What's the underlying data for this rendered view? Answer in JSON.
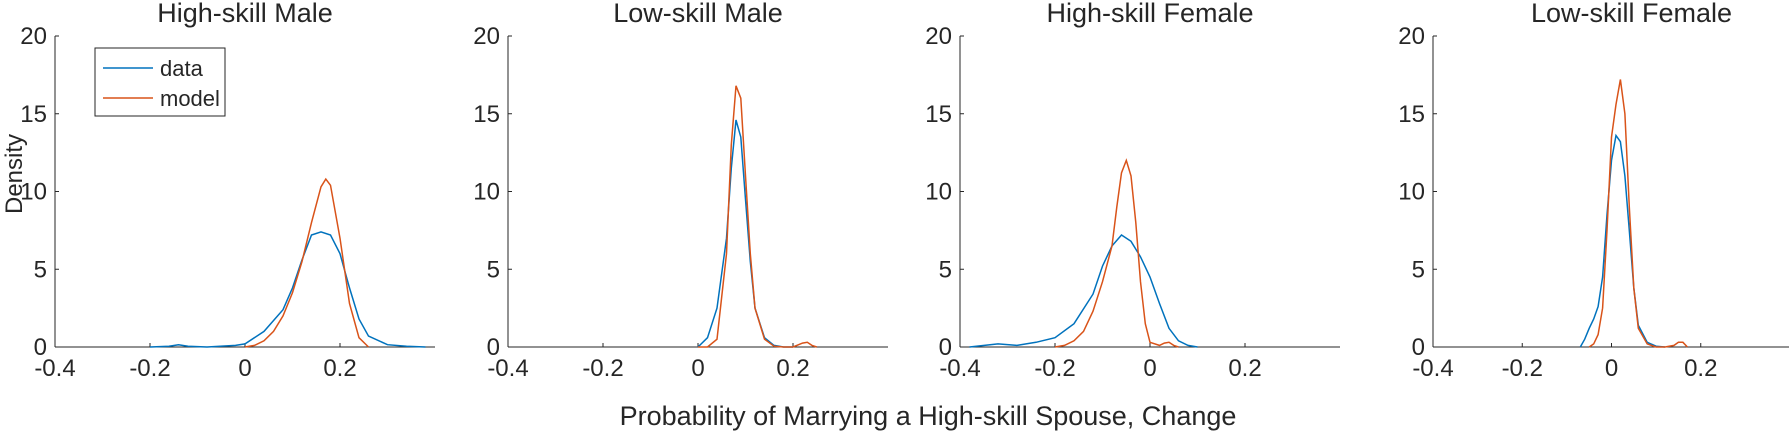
{
  "chart_data": [
    {
      "type": "line",
      "title": "High-skill Male",
      "xlim": [
        -0.4,
        0.4
      ],
      "ylim": [
        0,
        20
      ],
      "xticks": [
        "-0.4",
        "-0.2",
        "0",
        "0.2"
      ],
      "xtick_values": [
        -0.4,
        -0.2,
        0,
        0.2
      ],
      "yticks": [
        "0",
        "5",
        "10",
        "15",
        "20"
      ],
      "ytick_values": [
        0,
        5,
        10,
        15,
        20
      ],
      "series": [
        {
          "name": "data",
          "color": "#0072BD",
          "x": [
            -0.2,
            -0.16,
            -0.14,
            -0.12,
            -0.08,
            -0.02,
            0.0,
            0.04,
            0.08,
            0.1,
            0.12,
            0.14,
            0.16,
            0.18,
            0.2,
            0.22,
            0.24,
            0.26,
            0.3,
            0.34,
            0.38
          ],
          "y": [
            0.0,
            0.05,
            0.15,
            0.05,
            0.0,
            0.1,
            0.2,
            1.0,
            2.4,
            3.8,
            5.6,
            7.2,
            7.4,
            7.2,
            6.0,
            3.8,
            1.8,
            0.7,
            0.15,
            0.05,
            0.0
          ]
        },
        {
          "name": "model",
          "color": "#D95319",
          "x": [
            0.0,
            0.02,
            0.04,
            0.06,
            0.08,
            0.1,
            0.12,
            0.14,
            0.16,
            0.17,
            0.18,
            0.2,
            0.22,
            0.24,
            0.26
          ],
          "y": [
            0.0,
            0.1,
            0.4,
            1.0,
            2.0,
            3.5,
            5.5,
            8.0,
            10.3,
            10.8,
            10.4,
            7.0,
            2.8,
            0.6,
            0.0
          ]
        }
      ],
      "legend": {
        "entries": [
          "data",
          "model"
        ],
        "placement": "top-left"
      }
    },
    {
      "type": "line",
      "title": "Low-skill Male",
      "xlim": [
        -0.4,
        0.4
      ],
      "ylim": [
        0,
        20
      ],
      "xticks": [
        "-0.4",
        "-0.2",
        "0",
        "0.2"
      ],
      "xtick_values": [
        -0.4,
        -0.2,
        0,
        0.2
      ],
      "yticks": [
        "0",
        "5",
        "10",
        "15",
        "20"
      ],
      "ytick_values": [
        0,
        5,
        10,
        15,
        20
      ],
      "series": [
        {
          "name": "data",
          "color": "#0072BD",
          "x": [
            0.0,
            0.02,
            0.04,
            0.06,
            0.07,
            0.08,
            0.09,
            0.1,
            0.11,
            0.12,
            0.14,
            0.16,
            0.18,
            0.2
          ],
          "y": [
            0.0,
            0.6,
            2.5,
            7.0,
            11.5,
            14.6,
            13.5,
            9.5,
            5.5,
            2.5,
            0.6,
            0.1,
            0.0,
            0.0
          ]
        },
        {
          "name": "model",
          "color": "#D95319",
          "x": [
            0.0,
            0.02,
            0.04,
            0.06,
            0.07,
            0.08,
            0.09,
            0.1,
            0.11,
            0.12,
            0.14,
            0.16,
            0.18,
            0.2,
            0.22,
            0.23,
            0.24,
            0.25
          ],
          "y": [
            0.0,
            0.0,
            0.5,
            6.0,
            13.0,
            16.8,
            16.0,
            11.0,
            6.0,
            2.5,
            0.5,
            0.05,
            0.0,
            0.0,
            0.25,
            0.3,
            0.1,
            0.0
          ]
        }
      ]
    },
    {
      "type": "line",
      "title": "High-skill Female",
      "xlim": [
        -0.4,
        0.4
      ],
      "ylim": [
        0,
        20
      ],
      "xticks": [
        "-0.4",
        "-0.2",
        "0",
        "0.2"
      ],
      "xtick_values": [
        -0.4,
        -0.2,
        0,
        0.2
      ],
      "yticks": [
        "0",
        "5",
        "10",
        "15",
        "20"
      ],
      "ytick_values": [
        0,
        5,
        10,
        15,
        20
      ],
      "series": [
        {
          "name": "data",
          "color": "#0072BD",
          "x": [
            -0.38,
            -0.32,
            -0.28,
            -0.24,
            -0.2,
            -0.16,
            -0.12,
            -0.1,
            -0.08,
            -0.06,
            -0.04,
            -0.02,
            0.0,
            0.02,
            0.04,
            0.06,
            0.08,
            0.1
          ],
          "y": [
            0.0,
            0.2,
            0.1,
            0.3,
            0.6,
            1.5,
            3.4,
            5.2,
            6.5,
            7.2,
            6.8,
            5.8,
            4.5,
            2.8,
            1.2,
            0.4,
            0.1,
            0.0
          ]
        },
        {
          "name": "model",
          "color": "#D95319",
          "x": [
            -0.2,
            -0.18,
            -0.16,
            -0.14,
            -0.12,
            -0.1,
            -0.08,
            -0.07,
            -0.06,
            -0.05,
            -0.04,
            -0.03,
            -0.02,
            -0.01,
            0.0,
            0.02,
            0.03,
            0.04,
            0.05,
            0.06
          ],
          "y": [
            0.0,
            0.1,
            0.4,
            1.0,
            2.3,
            4.2,
            6.5,
            9.0,
            11.2,
            12.0,
            11.0,
            8.0,
            4.2,
            1.5,
            0.3,
            0.1,
            0.25,
            0.3,
            0.1,
            0.0
          ]
        }
      ]
    },
    {
      "type": "line",
      "title": "Low-skill Female",
      "xlim": [
        -0.4,
        0.4
      ],
      "ylim": [
        0,
        20
      ],
      "xticks": [
        "-0.4",
        "-0.2",
        "0",
        "0.2"
      ],
      "xtick_values": [
        -0.4,
        -0.2,
        0,
        0.2
      ],
      "yticks": [
        "0",
        "5",
        "10",
        "15",
        "20"
      ],
      "ytick_values": [
        0,
        5,
        10,
        15,
        20
      ],
      "series": [
        {
          "name": "data",
          "color": "#0072BD",
          "x": [
            -0.07,
            -0.06,
            -0.05,
            -0.04,
            -0.03,
            -0.02,
            -0.01,
            0.0,
            0.01,
            0.02,
            0.03,
            0.04,
            0.05,
            0.06,
            0.08,
            0.1,
            0.12
          ],
          "y": [
            0.0,
            0.5,
            1.2,
            1.8,
            2.6,
            4.5,
            8.5,
            12.0,
            13.6,
            13.2,
            11.0,
            7.5,
            3.8,
            1.4,
            0.3,
            0.05,
            0.0
          ]
        },
        {
          "name": "model",
          "color": "#D95319",
          "x": [
            -0.05,
            -0.04,
            -0.03,
            -0.02,
            -0.01,
            0.0,
            0.01,
            0.02,
            0.03,
            0.04,
            0.05,
            0.06,
            0.08,
            0.1,
            0.12,
            0.14,
            0.15,
            0.16,
            0.17
          ],
          "y": [
            0.0,
            0.2,
            0.8,
            2.5,
            7.5,
            13.5,
            15.6,
            17.2,
            15.0,
            9.0,
            3.8,
            1.2,
            0.2,
            0.0,
            0.0,
            0.1,
            0.3,
            0.3,
            0.0
          ]
        }
      ]
    }
  ],
  "shared": {
    "ylabel": "Density",
    "xlabel": "Probability of Marrying a High-skill Spouse, Change"
  }
}
